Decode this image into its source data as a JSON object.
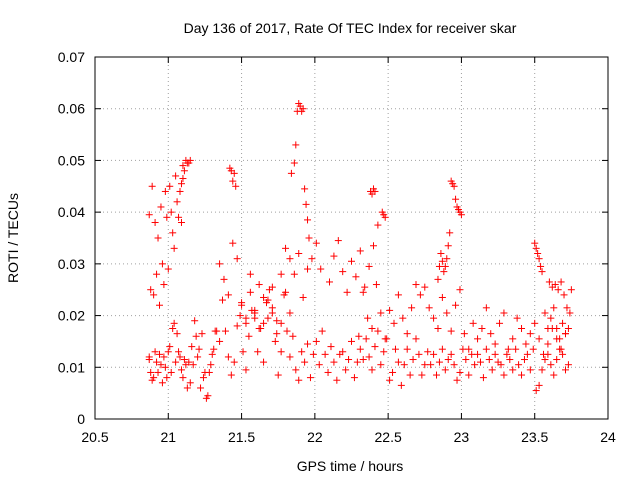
{
  "chart_data": {
    "type": "scatter",
    "title": "Day 136 of 2017, Rate Of TEC Index for receiver skar",
    "xlabel": "GPS time / hours",
    "ylabel": "ROTI / TECUs",
    "xlim": [
      20.5,
      24
    ],
    "ylim": [
      0,
      0.07
    ],
    "grid": true,
    "marker": "+",
    "marker_color": "#ff0000",
    "x_ticks": [
      20.5,
      21,
      21.5,
      22,
      22.5,
      23,
      23.5,
      24
    ],
    "x_tick_labels": [
      "20.5",
      "21",
      "21.5",
      "22",
      "22.5",
      "23",
      "23.5",
      "24"
    ],
    "y_ticks": [
      0,
      0.01,
      0.02,
      0.03,
      0.04,
      0.05,
      0.06,
      0.07
    ],
    "y_tick_labels": [
      "0",
      "0.01",
      "0.02",
      "0.03",
      "0.04",
      "0.05",
      "0.06",
      "0.07"
    ],
    "series": [
      {
        "name": "ROTI",
        "x": [
          20.87,
          20.88,
          20.89,
          20.9,
          20.91,
          20.92,
          20.93,
          20.94,
          20.95,
          20.96,
          20.97,
          20.98,
          20.99,
          21.0,
          21.01,
          21.02,
          21.03,
          21.04,
          21.05,
          21.06,
          21.07,
          21.08,
          21.09,
          21.1,
          20.87,
          20.88,
          20.9,
          20.92,
          20.94,
          20.96,
          20.98,
          21.0,
          21.02,
          21.04,
          21.06,
          21.08,
          21.1,
          21.12,
          21.14,
          21.16,
          21.18,
          21.2,
          21.22,
          21.24,
          21.26,
          21.28,
          21.3,
          21.32,
          20.87,
          20.89,
          20.91,
          20.93,
          20.95,
          20.97,
          20.99,
          21.01,
          21.03,
          21.05,
          21.07,
          21.09,
          21.11,
          21.13,
          21.15,
          21.17,
          21.19,
          21.21,
          21.23,
          21.25,
          21.27,
          21.29,
          21.31,
          21.33,
          21.35,
          21.37,
          21.39,
          21.41,
          21.43,
          21.45,
          21.47,
          21.49,
          21.51,
          21.53,
          21.55,
          21.57,
          21.59,
          21.61,
          21.63,
          21.65,
          21.67,
          21.69,
          21.71,
          21.73,
          21.75,
          21.77,
          21.79,
          21.81,
          21.35,
          21.38,
          21.41,
          21.44,
          21.47,
          21.5,
          21.53,
          21.56,
          21.59,
          21.62,
          21.65,
          21.68,
          21.71,
          21.74,
          21.77,
          21.8,
          21.83,
          21.86,
          21.89,
          21.92,
          21.95,
          21.98,
          22.01,
          22.04,
          21.83,
          21.85,
          21.87,
          21.89,
          21.91,
          21.93,
          21.95,
          21.97,
          21.99,
          22.01,
          22.03,
          22.05,
          22.07,
          22.09,
          22.11,
          22.13,
          22.15,
          22.17,
          22.19,
          22.21,
          22.23,
          22.25,
          22.27,
          22.29,
          21.84,
          21.86,
          21.87,
          21.88,
          21.89,
          21.9,
          21.91,
          21.92,
          21.93,
          21.94,
          21.95,
          21.96,
          21.42,
          21.43,
          21.44,
          21.45,
          21.46,
          21.12,
          21.13,
          21.14,
          21.15,
          21.11,
          21.1,
          21.09,
          22.31,
          22.33,
          22.35,
          22.37,
          22.39,
          22.41,
          22.43,
          22.45,
          22.47,
          22.49,
          22.51,
          22.53,
          22.55,
          22.57,
          22.59,
          22.61,
          22.63,
          22.65,
          22.67,
          22.69,
          22.71,
          22.73,
          22.75,
          22.77,
          22.3,
          22.33,
          22.36,
          22.39,
          22.42,
          22.45,
          22.48,
          22.51,
          22.54,
          22.57,
          22.6,
          22.63,
          22.66,
          22.69,
          22.72,
          22.75,
          22.78,
          22.81,
          22.84,
          22.87,
          22.9,
          22.93,
          22.96,
          22.99,
          22.38,
          22.39,
          22.4,
          22.41,
          22.46,
          22.47,
          22.48,
          22.93,
          22.94,
          22.95,
          22.96,
          22.97,
          22.98,
          22.99,
          23.0,
          22.92,
          22.91,
          22.9,
          22.89,
          22.88,
          22.87,
          22.86,
          22.85,
          22.84,
          22.79,
          22.81,
          22.83,
          22.85,
          22.87,
          22.89,
          22.91,
          22.93,
          22.95,
          22.97,
          22.99,
          23.01,
          23.03,
          23.05,
          23.07,
          23.09,
          23.11,
          23.13,
          23.15,
          23.17,
          23.19,
          23.21,
          23.23,
          23.25,
          23.02,
          23.05,
          23.08,
          23.11,
          23.14,
          23.17,
          23.2,
          23.23,
          23.26,
          23.29,
          23.32,
          23.35,
          23.38,
          23.41,
          23.44,
          23.47,
          23.5,
          23.53,
          23.56,
          23.59,
          23.62,
          23.65,
          23.68,
          23.71,
          23.27,
          23.29,
          23.31,
          23.33,
          23.35,
          23.37,
          23.39,
          23.41,
          23.43,
          23.45,
          23.47,
          23.49,
          23.51,
          23.53,
          23.55,
          23.57,
          23.59,
          23.61,
          23.63,
          23.65,
          23.67,
          23.69,
          23.71,
          23.73,
          23.5,
          23.51,
          23.52,
          23.53,
          23.54,
          23.55,
          23.6,
          23.62,
          23.64,
          23.66,
          23.68,
          23.7,
          23.72,
          23.74,
          23.75,
          23.73,
          23.71,
          23.69,
          23.67,
          23.65,
          23.63,
          23.61,
          23.59,
          23.57,
          21.5,
          21.53,
          21.56,
          21.59,
          21.62,
          21.65,
          21.68,
          21.71,
          21.74,
          21.77,
          21.8,
          21.83,
          22.1,
          22.13,
          22.16,
          22.19,
          22.22,
          22.25,
          22.28,
          22.31,
          22.34,
          22.37,
          22.4,
          22.43
        ],
        "y": [
          0.0395,
          0.025,
          0.045,
          0.024,
          0.038,
          0.028,
          0.035,
          0.022,
          0.041,
          0.03,
          0.026,
          0.044,
          0.039,
          0.029,
          0.045,
          0.04,
          0.036,
          0.033,
          0.047,
          0.042,
          0.039,
          0.044,
          0.038,
          0.049,
          0.012,
          0.009,
          0.008,
          0.011,
          0.0125,
          0.007,
          0.01,
          0.013,
          0.009,
          0.0185,
          0.0165,
          0.012,
          0.008,
          0.0105,
          0.011,
          0.014,
          0.019,
          0.012,
          0.006,
          0.008,
          0.004,
          0.009,
          0.0125,
          0.017,
          0.0115,
          0.0075,
          0.013,
          0.009,
          0.0105,
          0.012,
          0.008,
          0.014,
          0.0175,
          0.011,
          0.013,
          0.0095,
          0.0115,
          0.006,
          0.007,
          0.0105,
          0.016,
          0.0135,
          0.0165,
          0.009,
          0.0045,
          0.0105,
          0.0135,
          0.017,
          0.015,
          0.023,
          0.017,
          0.012,
          0.0085,
          0.011,
          0.018,
          0.02,
          0.013,
          0.0095,
          0.016,
          0.021,
          0.0195,
          0.013,
          0.0175,
          0.011,
          0.0225,
          0.025,
          0.0205,
          0.015,
          0.0085,
          0.013,
          0.024,
          0.017,
          0.03,
          0.027,
          0.024,
          0.034,
          0.031,
          0.022,
          0.0195,
          0.028,
          0.021,
          0.026,
          0.0185,
          0.023,
          0.0255,
          0.019,
          0.028,
          0.033,
          0.031,
          0.028,
          0.032,
          0.0235,
          0.029,
          0.031,
          0.034,
          0.029,
          0.012,
          0.016,
          0.0095,
          0.0075,
          0.013,
          0.011,
          0.0145,
          0.008,
          0.0125,
          0.015,
          0.0105,
          0.017,
          0.0125,
          0.009,
          0.014,
          0.011,
          0.0075,
          0.0125,
          0.013,
          0.0095,
          0.0115,
          0.015,
          0.008,
          0.011,
          0.0475,
          0.0495,
          0.053,
          0.0595,
          0.061,
          0.0605,
          0.0595,
          0.06,
          0.0445,
          0.0415,
          0.0385,
          0.035,
          0.0485,
          0.048,
          0.046,
          0.0475,
          0.045,
          0.05,
          0.0495,
          0.0495,
          0.05,
          0.048,
          0.0465,
          0.0455,
          0.0135,
          0.0115,
          0.0155,
          0.012,
          0.0095,
          0.014,
          0.017,
          0.0105,
          0.013,
          0.0155,
          0.0075,
          0.009,
          0.0135,
          0.011,
          0.0065,
          0.0105,
          0.0135,
          0.0085,
          0.0115,
          0.0155,
          0.0125,
          0.0085,
          0.0105,
          0.013,
          0.016,
          0.0245,
          0.0195,
          0.0175,
          0.026,
          0.0205,
          0.0155,
          0.021,
          0.0185,
          0.024,
          0.0195,
          0.0165,
          0.0215,
          0.026,
          0.024,
          0.0255,
          0.0215,
          0.0195,
          0.0175,
          0.0235,
          0.0205,
          0.017,
          0.022,
          0.025,
          0.044,
          0.0435,
          0.0445,
          0.044,
          0.04,
          0.0395,
          0.039,
          0.046,
          0.0455,
          0.045,
          0.0425,
          0.041,
          0.0405,
          0.04,
          0.0395,
          0.036,
          0.0335,
          0.031,
          0.0295,
          0.0285,
          0.0305,
          0.032,
          0.0295,
          0.027,
          0.0105,
          0.0125,
          0.0085,
          0.011,
          0.0135,
          0.0095,
          0.0115,
          0.0125,
          0.0105,
          0.0075,
          0.009,
          0.0135,
          0.0115,
          0.0085,
          0.0125,
          0.0105,
          0.0155,
          0.011,
          0.008,
          0.0135,
          0.0115,
          0.0095,
          0.0125,
          0.011,
          0.0165,
          0.0135,
          0.0185,
          0.0125,
          0.0175,
          0.0215,
          0.0165,
          0.0145,
          0.0185,
          0.0205,
          0.0135,
          0.0155,
          0.0195,
          0.0175,
          0.0145,
          0.0165,
          0.0185,
          0.0155,
          0.0125,
          0.0145,
          0.0175,
          0.0155,
          0.0135,
          0.0165,
          0.0105,
          0.0085,
          0.0125,
          0.0115,
          0.0095,
          0.0135,
          0.0105,
          0.0085,
          0.0115,
          0.0125,
          0.0095,
          0.0135,
          0.0055,
          0.0065,
          0.0095,
          0.0115,
          0.0125,
          0.0105,
          0.0085,
          0.0115,
          0.0135,
          0.0125,
          0.0095,
          0.0105,
          0.034,
          0.033,
          0.032,
          0.031,
          0.0295,
          0.0285,
          0.0265,
          0.0255,
          0.026,
          0.025,
          0.0265,
          0.024,
          0.0215,
          0.0205,
          0.025,
          0.0175,
          0.0165,
          0.0185,
          0.0155,
          0.0175,
          0.0215,
          0.0195,
          0.0175,
          0.0205,
          0.0225,
          0.0185,
          0.0245,
          0.0205,
          0.0175,
          0.0235,
          0.0195,
          0.0215,
          0.0165,
          0.0185,
          0.0245,
          0.0205,
          0.0265,
          0.0315,
          0.0345,
          0.0285,
          0.0245,
          0.0305,
          0.0275,
          0.0325,
          0.0255,
          0.0295,
          0.0335,
          0.0375
        ]
      }
    ]
  }
}
